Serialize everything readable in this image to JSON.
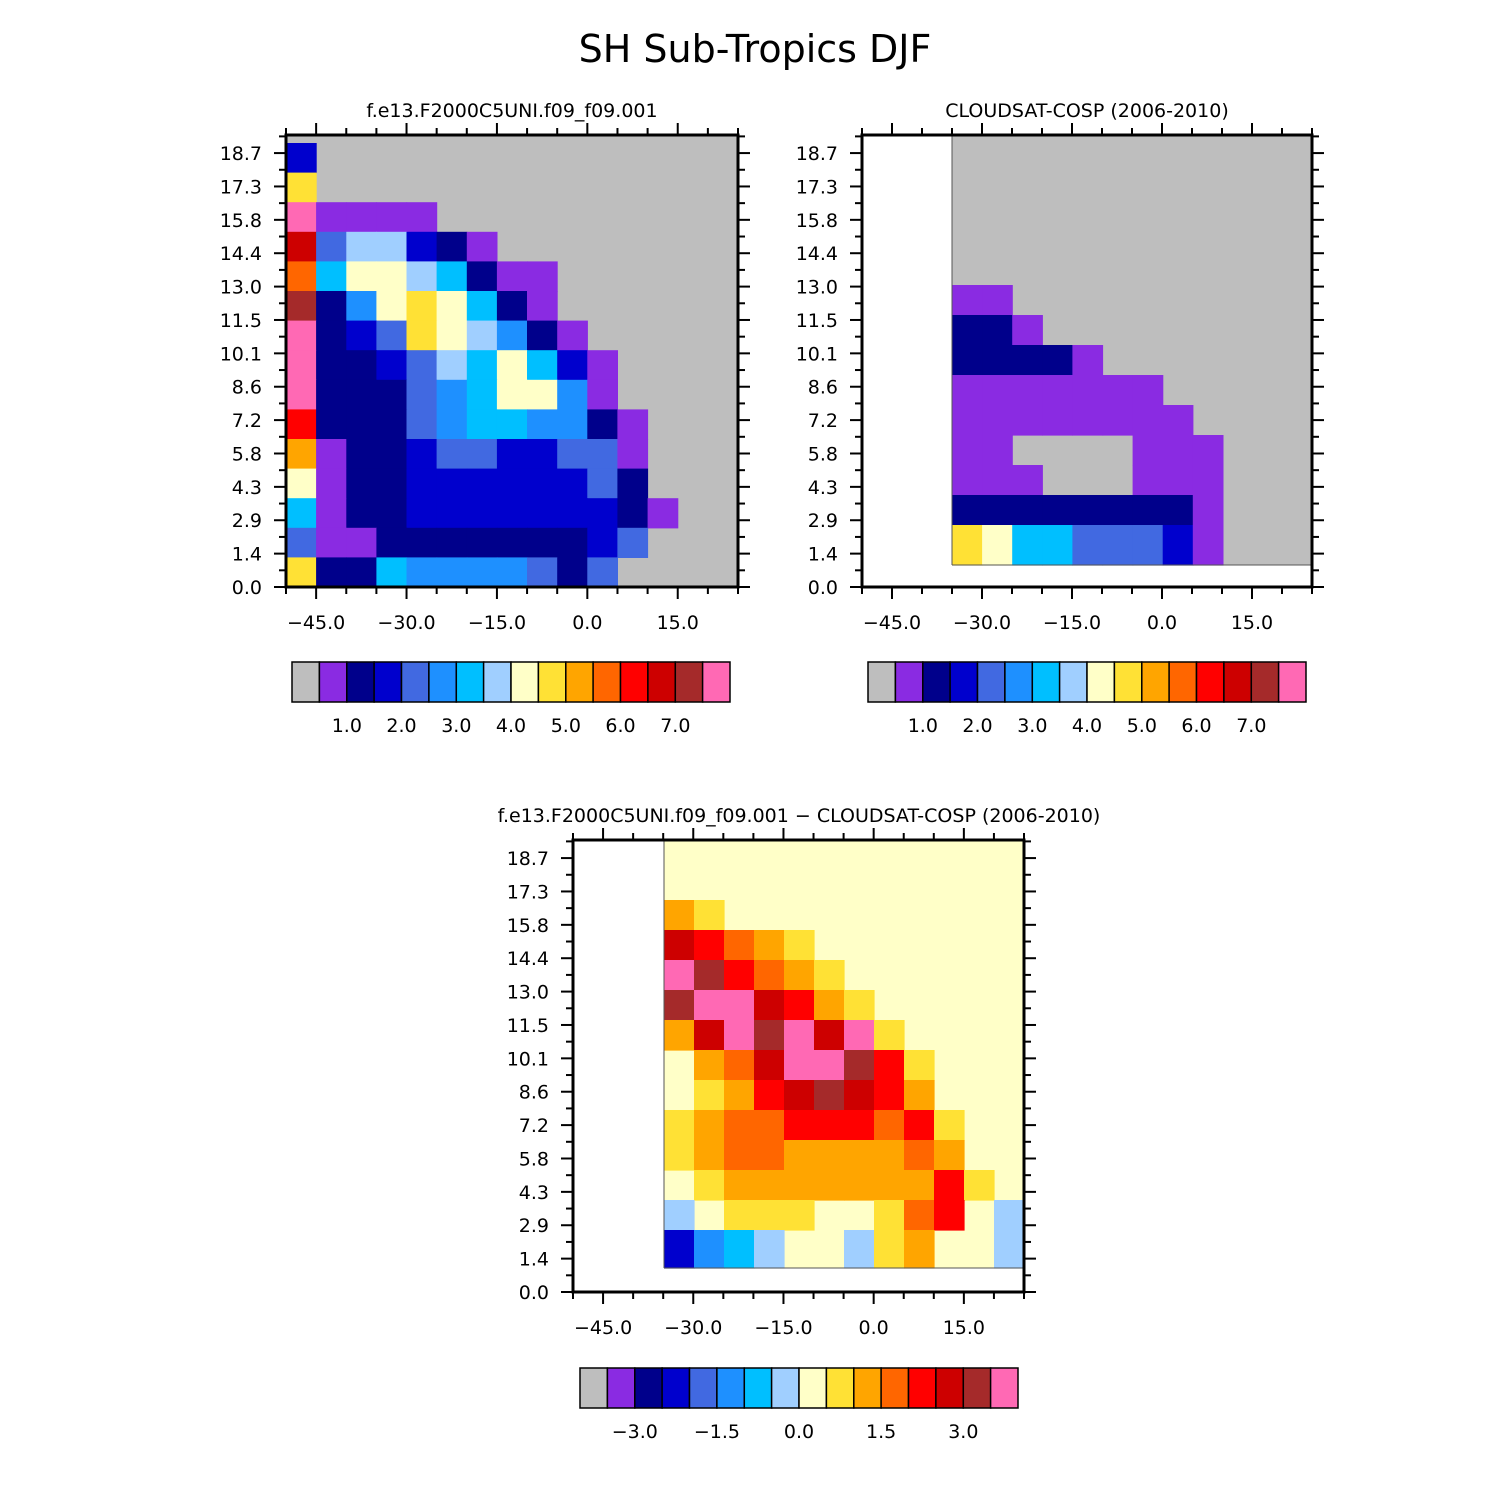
{
  "figure_title": "SH Sub-Tropics DJF",
  "colors": {
    "missing": "#bebebe",
    "palette": [
      "#bebebe",
      "#8a2be2",
      "#00008b",
      "#0000cd",
      "#4169e1",
      "#1e90ff",
      "#00bfff",
      "#a0cfff",
      "#ffffc8",
      "#ffe135",
      "#ffa500",
      "#ff6600",
      "#ff0000",
      "#cd0000",
      "#a52a2a",
      "#ff69b4"
    ],
    "frame": "#000000"
  },
  "chart_data": [
    {
      "type": "heatmap",
      "title": "f.e13.F2000C5UNI.f09_f09.001",
      "xlabel": "",
      "ylabel": "",
      "x_ticks": [
        "−45.0",
        "−30.0",
        "−15.0",
        "0.0",
        "15.0"
      ],
      "y_ticks": [
        "0.0",
        "1.4",
        "2.9",
        "4.3",
        "5.8",
        "7.2",
        "8.6",
        "10.1",
        "11.5",
        "13.0",
        "14.4",
        "15.8",
        "17.3",
        "18.7"
      ],
      "xlim": [
        -50,
        25
      ],
      "ylim": [
        0,
        19.5
      ],
      "colorbar_labels": [
        "1.0",
        "2.0",
        "3.0",
        "4.0",
        "5.0",
        "6.0",
        "7.0"
      ],
      "grid": "15 columns × 15 rows, column 1 = leftmost (-45), row 1 = top (~19), color class index into palette",
      "rows": [
        [
          3,
          0,
          0,
          0,
          0,
          0,
          0,
          0,
          0,
          0,
          0,
          0,
          0,
          0,
          0
        ],
        [
          9,
          0,
          0,
          0,
          0,
          0,
          0,
          0,
          0,
          0,
          0,
          0,
          0,
          0,
          0
        ],
        [
          15,
          1,
          1,
          1,
          1,
          0,
          0,
          0,
          0,
          0,
          0,
          0,
          0,
          0,
          0
        ],
        [
          13,
          4,
          7,
          7,
          3,
          2,
          1,
          0,
          0,
          0,
          0,
          0,
          0,
          0,
          0
        ],
        [
          11,
          6,
          8,
          8,
          7,
          6,
          2,
          1,
          1,
          0,
          0,
          0,
          0,
          0,
          0
        ],
        [
          14,
          2,
          5,
          8,
          9,
          8,
          6,
          2,
          1,
          0,
          0,
          0,
          0,
          0,
          0
        ],
        [
          15,
          2,
          3,
          4,
          9,
          8,
          7,
          5,
          2,
          1,
          0,
          0,
          0,
          0,
          0
        ],
        [
          15,
          2,
          2,
          3,
          4,
          7,
          6,
          8,
          6,
          3,
          1,
          0,
          0,
          0,
          0
        ],
        [
          15,
          2,
          2,
          2,
          4,
          5,
          6,
          8,
          8,
          5,
          1,
          0,
          0,
          0,
          0
        ],
        [
          12,
          2,
          2,
          2,
          4,
          5,
          6,
          6,
          5,
          5,
          2,
          1,
          0,
          0,
          0
        ],
        [
          10,
          1,
          2,
          2,
          3,
          4,
          4,
          3,
          3,
          4,
          4,
          1,
          0,
          0,
          0
        ],
        [
          8,
          1,
          2,
          2,
          3,
          3,
          3,
          3,
          3,
          3,
          4,
          2,
          0,
          0,
          0
        ],
        [
          6,
          1,
          2,
          2,
          3,
          3,
          3,
          3,
          3,
          3,
          3,
          2,
          1,
          0,
          0
        ],
        [
          4,
          1,
          1,
          2,
          2,
          2,
          2,
          2,
          2,
          2,
          3,
          4,
          0,
          0,
          0
        ],
        [
          9,
          2,
          2,
          6,
          5,
          5,
          5,
          5,
          4,
          2,
          4,
          0,
          0,
          0,
          0
        ]
      ]
    },
    {
      "type": "heatmap",
      "title": "CLOUDSAT-COSP (2006-2010)",
      "xlabel": "",
      "ylabel": "",
      "x_ticks": [
        "−45.0",
        "−30.0",
        "−15.0",
        "0.0",
        "15.0"
      ],
      "y_ticks": [
        "0.0",
        "1.4",
        "2.9",
        "4.3",
        "5.8",
        "7.2",
        "8.6",
        "10.1",
        "11.5",
        "13.0",
        "14.4",
        "15.8",
        "17.3",
        "18.7"
      ],
      "xlim": [
        -50,
        25
      ],
      "ylim": [
        0,
        19.5
      ],
      "colorbar_labels": [
        "1.0",
        "2.0",
        "3.0",
        "4.0",
        "5.0",
        "6.0",
        "7.0"
      ],
      "grid": "12 columns (starting at -35) × 14 rows, row 1 = top, -1 = no data",
      "rows": [
        [
          0,
          0,
          0,
          0,
          0,
          0,
          0,
          0,
          0,
          0,
          0,
          0
        ],
        [
          0,
          0,
          0,
          0,
          0,
          0,
          0,
          0,
          0,
          0,
          0,
          0
        ],
        [
          0,
          0,
          0,
          0,
          0,
          0,
          0,
          0,
          0,
          0,
          0,
          0
        ],
        [
          0,
          0,
          0,
          0,
          0,
          0,
          0,
          0,
          0,
          0,
          0,
          0
        ],
        [
          0,
          0,
          0,
          0,
          0,
          0,
          0,
          0,
          0,
          0,
          0,
          0
        ],
        [
          1,
          1,
          0,
          0,
          0,
          0,
          0,
          0,
          0,
          0,
          0,
          0
        ],
        [
          2,
          2,
          1,
          0,
          0,
          0,
          0,
          0,
          0,
          0,
          0,
          0
        ],
        [
          2,
          2,
          2,
          2,
          1,
          0,
          0,
          0,
          0,
          0,
          0,
          0
        ],
        [
          1,
          1,
          1,
          1,
          1,
          1,
          1,
          0,
          0,
          0,
          0,
          0
        ],
        [
          1,
          1,
          1,
          1,
          1,
          1,
          1,
          1,
          0,
          0,
          0,
          0
        ],
        [
          1,
          1,
          0,
          0,
          0,
          0,
          1,
          1,
          1,
          0,
          0,
          0
        ],
        [
          1,
          1,
          1,
          0,
          0,
          0,
          1,
          1,
          1,
          0,
          0,
          0
        ],
        [
          2,
          2,
          2,
          2,
          2,
          2,
          2,
          2,
          1,
          0,
          0,
          0
        ],
        [
          9,
          8,
          6,
          6,
          4,
          4,
          4,
          3,
          1,
          -1,
          -1,
          -1
        ]
      ]
    },
    {
      "type": "heatmap",
      "title": "f.e13.F2000C5UNI.f09_f09.001 − CLOUDSAT-COSP (2006-2010)",
      "xlabel": "",
      "ylabel": "",
      "x_ticks": [
        "−45.0",
        "−30.0",
        "−15.0",
        "0.0",
        "15.0"
      ],
      "y_ticks": [
        "0.0",
        "1.4",
        "2.9",
        "4.3",
        "5.8",
        "7.2",
        "8.6",
        "10.1",
        "11.5",
        "13.0",
        "14.4",
        "15.8",
        "17.3",
        "18.7"
      ],
      "xlim": [
        -50,
        25
      ],
      "ylim": [
        0,
        19.5
      ],
      "colorbar_labels": [
        "−3.0",
        "−1.5",
        "0.0",
        "1.5",
        "3.0"
      ],
      "grid": "12 columns (starting at -35) × 14 rows, row 1 = top",
      "rows": [
        [
          8,
          8,
          8,
          8,
          8,
          8,
          8,
          8,
          8,
          8,
          8,
          8
        ],
        [
          8,
          8,
          8,
          8,
          8,
          8,
          8,
          8,
          8,
          8,
          8,
          8
        ],
        [
          10,
          9,
          8,
          8,
          8,
          8,
          8,
          8,
          8,
          8,
          8,
          8
        ],
        [
          13,
          12,
          11,
          10,
          9,
          8,
          8,
          8,
          8,
          8,
          8,
          8
        ],
        [
          15,
          14,
          12,
          11,
          10,
          9,
          8,
          8,
          8,
          8,
          8,
          8
        ],
        [
          14,
          15,
          15,
          13,
          12,
          10,
          9,
          8,
          8,
          8,
          8,
          8
        ],
        [
          10,
          13,
          15,
          14,
          15,
          13,
          15,
          9,
          8,
          8,
          8,
          8
        ],
        [
          8,
          10,
          11,
          13,
          15,
          15,
          14,
          12,
          9,
          8,
          8,
          8
        ],
        [
          8,
          9,
          10,
          12,
          13,
          14,
          13,
          12,
          10,
          8,
          8,
          8
        ],
        [
          9,
          10,
          11,
          11,
          12,
          12,
          12,
          11,
          12,
          9,
          8,
          8
        ],
        [
          9,
          10,
          11,
          11,
          10,
          10,
          10,
          10,
          11,
          10,
          8,
          8
        ],
        [
          8,
          9,
          10,
          10,
          10,
          10,
          10,
          10,
          10,
          12,
          9,
          8
        ],
        [
          7,
          8,
          9,
          9,
          9,
          8,
          8,
          9,
          11,
          12,
          8,
          7
        ],
        [
          3,
          5,
          6,
          7,
          8,
          8,
          7,
          9,
          10,
          8,
          8,
          7
        ]
      ]
    }
  ]
}
